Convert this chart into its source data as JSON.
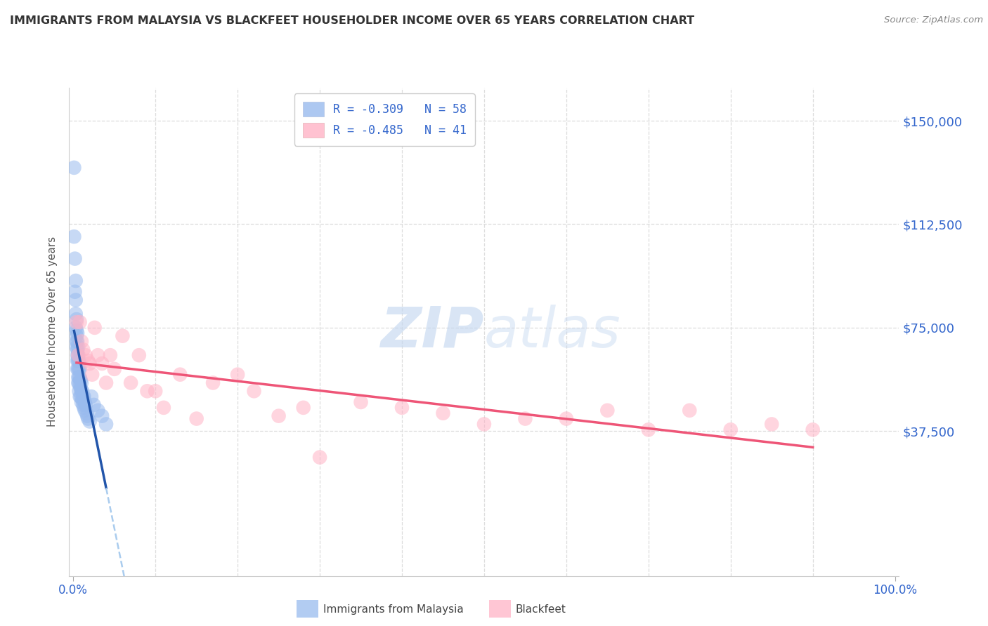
{
  "title": "IMMIGRANTS FROM MALAYSIA VS BLACKFEET HOUSEHOLDER INCOME OVER 65 YEARS CORRELATION CHART",
  "source": "Source: ZipAtlas.com",
  "ylabel": "Householder Income Over 65 years",
  "yticks": [
    0,
    37500,
    75000,
    112500,
    150000
  ],
  "ytick_labels": [
    "",
    "$37,500",
    "$75,000",
    "$112,500",
    "$150,000"
  ],
  "ymin": -15000,
  "ymax": 162000,
  "xmin": -0.005,
  "xmax": 1.005,
  "legend_r1": "R = -0.309   N = 58",
  "legend_r2": "R = -0.485   N = 41",
  "color_blue": "#99BBEE",
  "color_pink": "#FFB3C6",
  "color_blue_line": "#2255AA",
  "color_pink_line": "#EE5577",
  "color_dashed_line": "#AACCEE",
  "blue_points_x": [
    0.001,
    0.001,
    0.002,
    0.002,
    0.003,
    0.003,
    0.003,
    0.003,
    0.004,
    0.004,
    0.004,
    0.004,
    0.004,
    0.005,
    0.005,
    0.005,
    0.005,
    0.005,
    0.005,
    0.006,
    0.006,
    0.006,
    0.006,
    0.006,
    0.006,
    0.007,
    0.007,
    0.007,
    0.007,
    0.007,
    0.008,
    0.008,
    0.008,
    0.008,
    0.009,
    0.009,
    0.009,
    0.01,
    0.01,
    0.01,
    0.011,
    0.011,
    0.012,
    0.012,
    0.013,
    0.013,
    0.014,
    0.014,
    0.015,
    0.016,
    0.017,
    0.018,
    0.02,
    0.022,
    0.025,
    0.03,
    0.035,
    0.04
  ],
  "blue_points_y": [
    133000,
    108000,
    100000,
    88000,
    92000,
    85000,
    80000,
    75000,
    78000,
    74000,
    72000,
    70000,
    68000,
    73000,
    70000,
    67000,
    65000,
    63000,
    60000,
    68000,
    65000,
    63000,
    60000,
    57000,
    55000,
    63000,
    60000,
    57000,
    55000,
    52000,
    60000,
    57000,
    54000,
    50000,
    56000,
    53000,
    50000,
    55000,
    52000,
    48000,
    52000,
    49000,
    50000,
    47000,
    50000,
    46000,
    48000,
    45000,
    47000,
    44000,
    43000,
    42000,
    41000,
    50000,
    47000,
    45000,
    43000,
    40000
  ],
  "pink_points_x": [
    0.004,
    0.006,
    0.008,
    0.01,
    0.012,
    0.015,
    0.018,
    0.02,
    0.023,
    0.026,
    0.03,
    0.035,
    0.04,
    0.045,
    0.05,
    0.06,
    0.07,
    0.08,
    0.09,
    0.1,
    0.11,
    0.13,
    0.15,
    0.17,
    0.2,
    0.22,
    0.25,
    0.28,
    0.3,
    0.35,
    0.4,
    0.45,
    0.5,
    0.55,
    0.6,
    0.65,
    0.7,
    0.75,
    0.8,
    0.85,
    0.9
  ],
  "pink_points_y": [
    77000,
    65000,
    77000,
    70000,
    67000,
    65000,
    63000,
    62000,
    58000,
    75000,
    65000,
    62000,
    55000,
    65000,
    60000,
    72000,
    55000,
    65000,
    52000,
    52000,
    46000,
    58000,
    42000,
    55000,
    58000,
    52000,
    43000,
    46000,
    28000,
    48000,
    46000,
    44000,
    40000,
    42000,
    42000,
    45000,
    38000,
    45000,
    38000,
    40000,
    38000
  ]
}
